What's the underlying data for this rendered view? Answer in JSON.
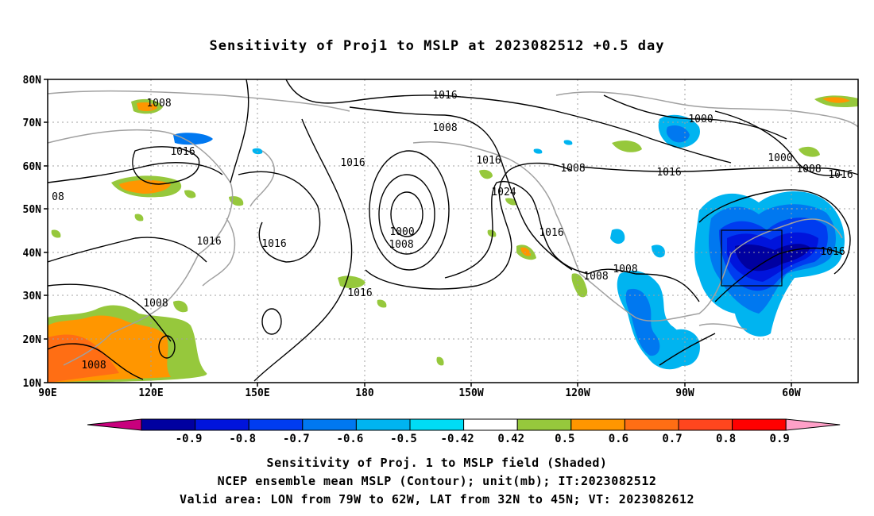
{
  "title": "Sensitivity of Proj1 to MSLP at 2023082512 +0.5 day",
  "axes": {
    "lat_labels": [
      "10N",
      "20N",
      "30N",
      "40N",
      "50N",
      "60N",
      "70N",
      "80N"
    ],
    "lon_labels": [
      "90E",
      "120E",
      "150E",
      "180",
      "150W",
      "120W",
      "90W",
      "60W"
    ]
  },
  "contour_labels": [
    {
      "id": "c1",
      "text": "1016"
    },
    {
      "id": "c2",
      "text": "1008"
    },
    {
      "id": "c3",
      "text": "1016"
    },
    {
      "id": "c4",
      "text": "1016"
    },
    {
      "id": "c5",
      "text": "1016"
    },
    {
      "id": "c6",
      "text": "1008"
    },
    {
      "id": "c7",
      "text": "1016"
    },
    {
      "id": "c8",
      "text": "1024"
    },
    {
      "id": "c9",
      "text": "1000"
    },
    {
      "id": "c10",
      "text": "1008"
    },
    {
      "id": "c11",
      "text": "1016"
    },
    {
      "id": "c12",
      "text": "1016"
    },
    {
      "id": "c13",
      "text": "1008"
    },
    {
      "id": "c14",
      "text": "1016"
    },
    {
      "id": "c15",
      "text": "1008"
    },
    {
      "id": "c16",
      "text": "1016"
    },
    {
      "id": "c17",
      "text": "1000"
    },
    {
      "id": "c18",
      "text": "1000"
    },
    {
      "id": "c19",
      "text": "1008"
    },
    {
      "id": "c20",
      "text": "1016"
    },
    {
      "id": "c21",
      "text": "1016"
    },
    {
      "id": "c22",
      "text": "1008"
    },
    {
      "id": "c23",
      "text": "1008"
    },
    {
      "id": "c24",
      "text": "08"
    },
    {
      "id": "c25",
      "text": "1008"
    }
  ],
  "colorbar": {
    "labels": [
      "-0.9",
      "-0.8",
      "-0.7",
      "-0.6",
      "-0.5",
      "-0.42",
      "0.42",
      "0.5",
      "0.6",
      "0.7",
      "0.8",
      "0.9"
    ],
    "colors": {
      "under": "#c8007d",
      "bins": [
        "#0000a0",
        "#0014dc",
        "#003cf0",
        "#0078f0",
        "#00b4f0",
        "#00dcf5",
        "#ffffff",
        "#96c83c",
        "#ff9600",
        "#ff6e14",
        "#ff461e",
        "#ff0000"
      ],
      "over": "#ffa0c8"
    }
  },
  "captions": [
    "Sensitivity of Proj. 1 to MSLP field (Shaded)",
    "NCEP ensemble mean MSLP (Contour); unit(mb); IT:2023082512",
    "Valid area: LON from 79W to 62W, LAT from 32N to 45N; VT: 2023082612"
  ]
}
